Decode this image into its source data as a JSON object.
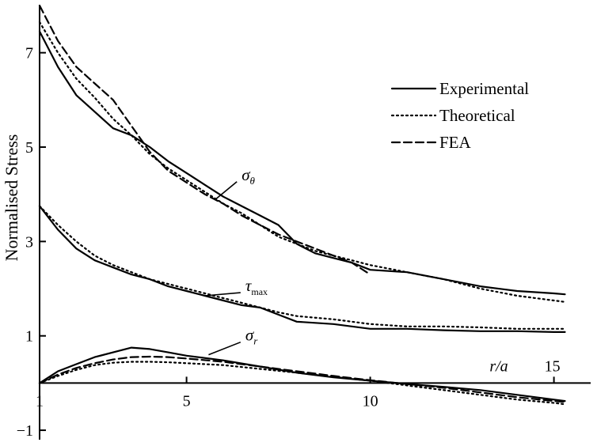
{
  "chart_data": {
    "type": "line",
    "xlabel": "r/a",
    "ylabel": "Normalised Stress",
    "xlim": [
      1,
      16
    ],
    "ylim": [
      -1.2,
      8.0
    ],
    "x_ticks": [
      "1",
      "5",
      "10",
      "15"
    ],
    "y_ticks": [
      "7",
      "5",
      "3",
      "1",
      "−1"
    ],
    "legend": {
      "placement": "top-right",
      "entries": [
        {
          "label": "Experimental",
          "style": "solid"
        },
        {
          "label": "Theoretical",
          "style": "dotted"
        },
        {
          "label": "FEA",
          "style": "dashed"
        }
      ]
    },
    "annotations": [
      {
        "symbol": "σ",
        "subscript": "θ",
        "at": [
          6.5,
          4.3
        ],
        "arrow_to": [
          5.8,
          3.9
        ]
      },
      {
        "symbol": "τ",
        "subscript": "max",
        "at": [
          6.6,
          1.95
        ],
        "arrow_to": [
          5.5,
          1.85
        ]
      },
      {
        "symbol": "σ",
        "subscript": "r",
        "at": [
          6.6,
          0.9
        ],
        "arrow_to": [
          5.6,
          0.6
        ]
      }
    ],
    "series": [
      {
        "curve": "sigma_theta",
        "style": "solid",
        "x": [
          1.0,
          1.5,
          2.0,
          2.5,
          3.0,
          3.5,
          4.0,
          4.5,
          5.0,
          5.5,
          6.0,
          6.5,
          7.0,
          7.5,
          8.0,
          8.5,
          9.0,
          9.5,
          10.0,
          11.0,
          12.0,
          13.0,
          14.0,
          15.0,
          15.3
        ],
        "y": [
          7.45,
          6.7,
          6.1,
          5.75,
          5.4,
          5.25,
          5.0,
          4.7,
          4.45,
          4.2,
          3.95,
          3.75,
          3.55,
          3.35,
          2.95,
          2.75,
          2.65,
          2.55,
          2.4,
          2.35,
          2.2,
          2.05,
          1.95,
          1.9,
          1.88
        ]
      },
      {
        "curve": "sigma_theta",
        "style": "dotted",
        "x": [
          1.0,
          1.5,
          2.0,
          2.5,
          3.0,
          3.5,
          4.0,
          4.5,
          5.0,
          5.5,
          6.0,
          6.5,
          7.0,
          7.5,
          8.0,
          8.5,
          9.0,
          9.5,
          10.0,
          11.0,
          12.0,
          13.0,
          14.0,
          15.0,
          15.3
        ],
        "y": [
          7.65,
          7.0,
          6.45,
          6.05,
          5.6,
          5.25,
          4.85,
          4.55,
          4.3,
          4.05,
          3.8,
          3.6,
          3.35,
          3.1,
          2.95,
          2.8,
          2.7,
          2.6,
          2.5,
          2.35,
          2.2,
          2.0,
          1.85,
          1.75,
          1.72
        ]
      },
      {
        "curve": "sigma_theta",
        "style": "dashed",
        "x": [
          1.0,
          1.5,
          2.0,
          2.5,
          3.0,
          3.5,
          4.0,
          4.5,
          5.0,
          5.5,
          6.0,
          6.5,
          7.0,
          7.5,
          8.0,
          8.5,
          9.0,
          9.5,
          10.0
        ],
        "y": [
          8.0,
          7.25,
          6.7,
          6.35,
          6.0,
          5.45,
          4.9,
          4.5,
          4.25,
          4.0,
          3.8,
          3.55,
          3.35,
          3.15,
          3.0,
          2.85,
          2.7,
          2.55,
          2.3
        ]
      },
      {
        "curve": "tau_max",
        "style": "solid",
        "x": [
          1.0,
          1.5,
          2.0,
          2.5,
          3.0,
          3.5,
          4.0,
          4.5,
          5.0,
          5.5,
          6.0,
          6.5,
          7.0,
          7.5,
          8.0,
          9.0,
          10.0,
          11.0,
          12.0,
          13.0,
          14.0,
          15.0,
          15.3
        ],
        "y": [
          3.75,
          3.25,
          2.85,
          2.6,
          2.45,
          2.3,
          2.2,
          2.05,
          1.95,
          1.85,
          1.75,
          1.65,
          1.6,
          1.45,
          1.3,
          1.25,
          1.15,
          1.15,
          1.12,
          1.1,
          1.1,
          1.08,
          1.08
        ]
      },
      {
        "curve": "tau_max",
        "style": "dotted",
        "x": [
          1.0,
          1.5,
          2.0,
          2.5,
          3.0,
          3.5,
          4.0,
          4.5,
          5.0,
          5.5,
          6.0,
          6.5,
          7.0,
          7.5,
          8.0,
          9.0,
          10.0,
          11.0,
          12.0,
          13.0,
          14.0,
          15.0,
          15.3
        ],
        "y": [
          3.75,
          3.35,
          3.0,
          2.7,
          2.5,
          2.35,
          2.2,
          2.1,
          2.0,
          1.9,
          1.8,
          1.7,
          1.6,
          1.5,
          1.42,
          1.35,
          1.25,
          1.2,
          1.2,
          1.18,
          1.15,
          1.15,
          1.15
        ]
      },
      {
        "curve": "sigma_r",
        "style": "solid",
        "x": [
          1.0,
          1.5,
          2.0,
          2.5,
          3.0,
          3.5,
          4.0,
          4.5,
          5.0,
          6.0,
          7.0,
          8.0,
          9.0,
          10.0,
          11.0,
          12.0,
          13.0,
          14.0,
          15.0,
          15.3
        ],
        "y": [
          0.0,
          0.25,
          0.4,
          0.55,
          0.65,
          0.75,
          0.72,
          0.65,
          0.58,
          0.48,
          0.35,
          0.22,
          0.12,
          0.05,
          -0.02,
          -0.08,
          -0.15,
          -0.25,
          -0.35,
          -0.38
        ]
      },
      {
        "curve": "sigma_r",
        "style": "dotted",
        "x": [
          1.0,
          1.5,
          2.0,
          2.5,
          3.0,
          3.5,
          4.0,
          4.5,
          5.0,
          6.0,
          7.0,
          8.0,
          9.0,
          10.0,
          11.0,
          12.0,
          13.0,
          14.0,
          15.0,
          15.3
        ],
        "y": [
          0.0,
          0.15,
          0.28,
          0.38,
          0.43,
          0.45,
          0.45,
          0.44,
          0.42,
          0.38,
          0.3,
          0.22,
          0.13,
          0.05,
          -0.05,
          -0.15,
          -0.25,
          -0.35,
          -0.42,
          -0.45
        ]
      },
      {
        "curve": "sigma_r",
        "style": "dashed",
        "x": [
          1.0,
          1.5,
          2.0,
          2.5,
          3.0,
          3.5,
          4.0,
          4.5,
          5.0,
          6.0,
          7.0,
          8.0,
          9.0,
          10.0,
          11.0,
          12.0,
          13.0,
          14.0,
          15.0,
          15.3
        ],
        "y": [
          0.0,
          0.18,
          0.32,
          0.42,
          0.5,
          0.55,
          0.56,
          0.55,
          0.52,
          0.45,
          0.35,
          0.25,
          0.15,
          0.06,
          -0.02,
          -0.1,
          -0.2,
          -0.3,
          -0.38,
          -0.4
        ]
      }
    ]
  }
}
